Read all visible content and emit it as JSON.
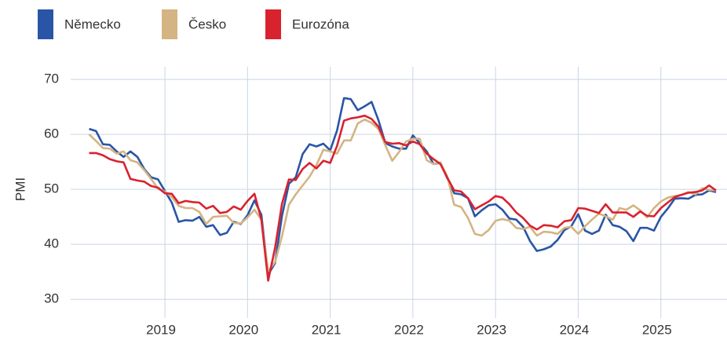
{
  "chart_data": {
    "type": "line",
    "y_label": "PMI",
    "xlim": [
      2017.86,
      2025.8
    ],
    "ylim": [
      26.6,
      72.3
    ],
    "xticks": [
      2019,
      2020,
      2021,
      2022,
      2023,
      2024,
      2025
    ],
    "yticks": [
      30,
      40,
      50,
      60,
      70
    ],
    "grid": true,
    "legend": "top-left",
    "x": [
      2018.083,
      2018.167,
      2018.25,
      2018.333,
      2018.417,
      2018.5,
      2018.583,
      2018.667,
      2018.75,
      2018.833,
      2018.917,
      2019,
      2019.083,
      2019.167,
      2019.25,
      2019.333,
      2019.417,
      2019.5,
      2019.583,
      2019.667,
      2019.75,
      2019.833,
      2019.917,
      2020,
      2020.083,
      2020.167,
      2020.25,
      2020.333,
      2020.417,
      2020.5,
      2020.583,
      2020.667,
      2020.75,
      2020.833,
      2020.917,
      2021,
      2021.083,
      2021.167,
      2021.25,
      2021.333,
      2021.417,
      2021.5,
      2021.583,
      2021.667,
      2021.75,
      2021.833,
      2021.917,
      2022,
      2022.083,
      2022.167,
      2022.25,
      2022.333,
      2022.417,
      2022.5,
      2022.583,
      2022.667,
      2022.75,
      2022.833,
      2022.917,
      2023,
      2023.083,
      2023.167,
      2023.25,
      2023.333,
      2023.417,
      2023.5,
      2023.583,
      2023.667,
      2023.75,
      2023.833,
      2023.917,
      2024,
      2024.083,
      2024.167,
      2024.25,
      2024.333,
      2024.417,
      2024.5,
      2024.583,
      2024.667,
      2024.75,
      2024.833,
      2024.917,
      2025,
      2025.083,
      2025.167,
      2025.25,
      2025.333,
      2025.417,
      2025.5,
      2025.583,
      2025.667
    ],
    "series": [
      {
        "name": "Německo",
        "color": "#2a55a7",
        "values": [
          61,
          60.6,
          58.2,
          58.1,
          56.9,
          55.9,
          56.9,
          55.9,
          53.7,
          52.2,
          51.8,
          49.7,
          47.6,
          44.1,
          44.4,
          44.3,
          45,
          43.2,
          43.5,
          41.7,
          42.1,
          44.1,
          43.7,
          45.3,
          48,
          45.4,
          34.5,
          36.6,
          45.2,
          51,
          52.2,
          56.4,
          58.2,
          57.8,
          58.3,
          57.1,
          60.7,
          66.6,
          66.4,
          64.4,
          65.1,
          65.9,
          62.6,
          58.4,
          57.8,
          57.4,
          57.4,
          59.8,
          58.4,
          56.9,
          54.6,
          54.8,
          52,
          49.3,
          49.1,
          48.4,
          45.1,
          46.2,
          47.1,
          47.3,
          46.3,
          44.7,
          44.5,
          43.2,
          40.6,
          38.8,
          39.1,
          39.6,
          40.8,
          42.6,
          43.3,
          45.5,
          42.5,
          41.9,
          42.5,
          45.4,
          43.5,
          43.2,
          42.4,
          40.6,
          43,
          43,
          42.5,
          45,
          46.5,
          48.3,
          48.4,
          48.3,
          49,
          49.1,
          49.8,
          49.5
        ]
      },
      {
        "name": "Česko",
        "color": "#d4b483",
        "values": [
          60,
          58.8,
          57.5,
          57.4,
          56.5,
          56.9,
          55.3,
          54.9,
          53.5,
          51.9,
          50.1,
          49.6,
          48.6,
          47,
          46.6,
          46.6,
          45.9,
          43.7,
          45,
          45.1,
          45.2,
          43.9,
          43.8,
          44.9,
          46.3,
          44.5,
          35.1,
          36.8,
          41.5,
          47.2,
          49.1,
          50.7,
          52.3,
          54.4,
          57.2,
          56.9,
          56.5,
          58.9,
          58.9,
          62,
          62.7,
          62.1,
          61,
          58,
          55.2,
          56.8,
          58.7,
          59.2,
          59.2,
          55.3,
          54.6,
          54.9,
          52.3,
          47.2,
          46.8,
          44.8,
          41.9,
          41.6,
          42.6,
          44.3,
          44.6,
          44.3,
          43,
          42.8,
          43.2,
          41.6,
          42.3,
          42.2,
          41.9,
          43,
          43.2,
          41.9,
          43.3,
          44.5,
          45.6,
          45.1,
          44.5,
          46.6,
          46.3,
          47.1,
          46.2,
          44.9,
          46.6,
          47.8,
          48.5,
          48.8,
          49,
          49.5,
          49.1,
          50.2,
          49.9,
          49.8
        ]
      },
      {
        "name": "Eurozóna",
        "color": "#d9222f",
        "values": [
          56.6,
          56.6,
          56.2,
          55.5,
          55.1,
          54.9,
          51.9,
          51.6,
          51.4,
          50.6,
          50.3,
          49.3,
          49.2,
          47.5,
          47.9,
          47.7,
          47.6,
          46.5,
          47,
          45.7,
          45.9,
          46.9,
          46.3,
          47.9,
          49.2,
          44.5,
          33.4,
          39.4,
          47.4,
          51.8,
          51.7,
          53.7,
          54.8,
          53.8,
          55.2,
          54.8,
          57.9,
          62.5,
          62.9,
          63.1,
          63.4,
          62.8,
          61.4,
          58.6,
          58.3,
          58.4,
          58,
          58.7,
          58.2,
          56.5,
          55.5,
          54.6,
          52.1,
          49.8,
          49.6,
          48.4,
          46.4,
          47.1,
          47.8,
          48.8,
          48.5,
          47.3,
          45.8,
          44.8,
          43.4,
          42.7,
          43.5,
          43.4,
          43.1,
          44.2,
          44.4,
          46.6,
          46.5,
          46.1,
          45.7,
          47.3,
          45.8,
          45.8,
          45.8,
          45,
          46,
          45.2,
          45.1,
          46.6,
          47.6,
          48.6,
          49,
          49.4,
          49.5,
          49.8,
          50.7,
          49.8
        ]
      }
    ]
  }
}
